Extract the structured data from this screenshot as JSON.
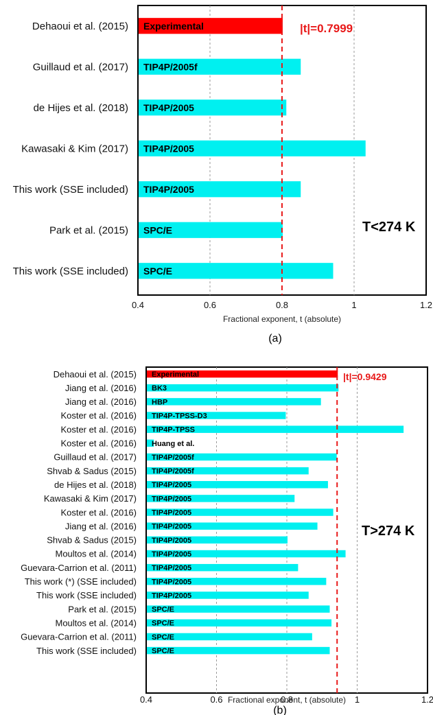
{
  "colors": {
    "experimental": "#ff0000",
    "simulation": "#00f0f0",
    "reference_line": "#e81818",
    "grid": "#999999"
  },
  "chart_data": [
    {
      "type": "bar",
      "orientation": "horizontal",
      "panel_label": "(a)",
      "xlabel": "Fractional exponent, t (absolute)",
      "xlim": [
        0.4,
        1.2
      ],
      "xticks": [
        "0.4",
        "0.6",
        "0.8",
        "1",
        "1.2"
      ],
      "grid": "vertical dashed at 0.6, 1.0",
      "reference_value": 0.7999,
      "reference_label": "|t|=0.7999",
      "region_label": "T<274 K",
      "categories": [
        "Dehaoui et al. (2015)",
        "Guillaud et al. (2017)",
        "de Hijes et al. (2018)",
        "Kawasaki & Kim (2017)",
        "This work (SSE included)",
        "Park et al. (2015)",
        "This work (SSE included)"
      ],
      "bar_labels": [
        "Experimental",
        "TIP4P/2005f",
        "TIP4P/2005",
        "TIP4P/2005",
        "TIP4P/2005",
        "SPC/E",
        "SPC/E"
      ],
      "values": [
        0.7999,
        0.85,
        0.81,
        1.03,
        0.85,
        0.8,
        0.94
      ],
      "experimental_index": 0
    },
    {
      "type": "bar",
      "orientation": "horizontal",
      "panel_label": "(b)",
      "xlabel": "Fractional exponent, t (absolute)",
      "xlim": [
        0.4,
        1.2
      ],
      "xticks": [
        "0.4",
        "0.6",
        "0.8",
        "1",
        "1.2"
      ],
      "grid": "vertical dashed at 0.6, 0.8, 1.0",
      "reference_value": 0.9429,
      "reference_label": "|t|=0.9429",
      "region_label": "T>274 K",
      "categories": [
        "Dehaoui et al. (2015)",
        "Jiang et al. (2016)",
        "Jiang et al. (2016)",
        "Koster et al. (2016)",
        "Koster et al. (2016)",
        "Koster et al. (2016)",
        "Guillaud et al. (2017)",
        "Shvab & Sadus (2015)",
        "de Hijes et al. (2018)",
        "Kawasaki & Kim (2017)",
        "Koster et al. (2016)",
        "Jiang et al. (2016)",
        "Shvab & Sadus (2015)",
        "Moultos et al. (2014)",
        "Guevara-Carrion et al. (2011)",
        "This work (*) (SSE included)",
        "This work (SSE included)",
        "Park et al. (2015)",
        "Moultos et al. (2014)",
        "Guevara-Carrion et al. (2011)",
        "This work (SSE included)"
      ],
      "bar_labels": [
        "Experimental",
        "BK3",
        "HBP",
        "TIP4P-TPSS-D3",
        "TIP4P-TPSS",
        "Huang et al.",
        "TIP4P/2005f",
        "TIP4P/2005f",
        "TIP4P/2005",
        "TIP4P/2005",
        "TIP4P/2005",
        "TIP4P/2005",
        "TIP4P/2005",
        "TIP4P/2005",
        "TIP4P/2005",
        "TIP4P/2005",
        "TIP4P/2005",
        "SPC/E",
        "SPC/E",
        "SPC/E",
        "SPC/E"
      ],
      "values": [
        0.9429,
        0.945,
        0.895,
        0.795,
        1.13,
        0.42,
        0.94,
        0.86,
        0.915,
        0.82,
        0.93,
        0.885,
        0.8,
        0.965,
        0.83,
        0.91,
        0.86,
        0.92,
        0.925,
        0.87,
        0.92
      ],
      "experimental_index": 0
    }
  ]
}
